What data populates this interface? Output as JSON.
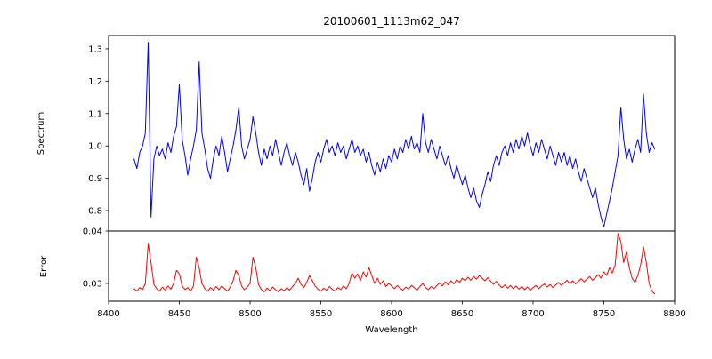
{
  "figure": {
    "title": "20100601_1113m62_047",
    "background": "#ffffff",
    "spine_color": "#000000"
  },
  "chart_data": [
    {
      "type": "line",
      "title": "20100601_1113m62_047",
      "series_name": "spectrum",
      "color": "#0000ff",
      "ylabel": "Spectrum",
      "xlim": [
        8400,
        8800
      ],
      "ylim": [
        0.737,
        1.341
      ],
      "grid": false,
      "legend": "none",
      "yticks": [
        {
          "v": 0.8,
          "label": "0.8"
        },
        {
          "v": 0.9,
          "label": "0.9"
        },
        {
          "v": 1.0,
          "label": "1.0"
        },
        {
          "v": 1.1,
          "label": "1.1"
        },
        {
          "v": 1.2,
          "label": "1.2"
        },
        {
          "v": 1.3,
          "label": "1.3"
        }
      ],
      "x_start": 8418,
      "x_step": 2,
      "values": [
        0.96,
        0.93,
        0.98,
        1.0,
        1.04,
        1.32,
        0.78,
        0.96,
        1.0,
        0.97,
        0.99,
        0.96,
        1.01,
        0.98,
        1.03,
        1.06,
        1.19,
        1.02,
        0.97,
        0.91,
        0.96,
        1.0,
        1.05,
        1.26,
        1.04,
        0.99,
        0.93,
        0.9,
        0.96,
        1.0,
        0.97,
        1.03,
        0.98,
        0.92,
        0.96,
        1.0,
        1.05,
        1.12,
        1.0,
        0.96,
        0.99,
        1.02,
        1.09,
        1.04,
        0.98,
        0.94,
        0.99,
        0.96,
        1.0,
        0.97,
        1.02,
        0.98,
        0.94,
        0.98,
        1.01,
        0.97,
        0.94,
        0.98,
        0.95,
        0.91,
        0.88,
        0.93,
        0.86,
        0.9,
        0.95,
        0.98,
        0.95,
        0.99,
        1.02,
        0.98,
        1.0,
        0.97,
        1.01,
        0.98,
        1.0,
        0.96,
        0.99,
        1.02,
        0.98,
        1.0,
        0.97,
        0.99,
        0.95,
        0.98,
        0.94,
        0.91,
        0.95,
        0.92,
        0.96,
        0.93,
        0.97,
        0.95,
        0.99,
        0.96,
        1.0,
        0.98,
        1.02,
        0.99,
        1.03,
        0.99,
        1.01,
        0.98,
        1.1,
        1.01,
        0.98,
        1.02,
        0.99,
        0.96,
        1.0,
        0.97,
        0.94,
        0.97,
        0.93,
        0.9,
        0.94,
        0.91,
        0.88,
        0.91,
        0.87,
        0.84,
        0.87,
        0.83,
        0.81,
        0.85,
        0.88,
        0.92,
        0.89,
        0.94,
        0.97,
        0.94,
        0.98,
        1.0,
        0.97,
        1.01,
        0.98,
        1.02,
        0.99,
        1.03,
        1.0,
        1.04,
        1.0,
        0.97,
        1.01,
        0.98,
        1.02,
        0.99,
        0.96,
        1.0,
        0.97,
        0.94,
        0.98,
        0.95,
        0.98,
        0.94,
        0.97,
        0.93,
        0.96,
        0.92,
        0.89,
        0.93,
        0.9,
        0.87,
        0.84,
        0.87,
        0.82,
        0.78,
        0.75,
        0.79,
        0.83,
        0.87,
        0.92,
        0.97,
        1.12,
        1.02,
        0.96,
        0.99,
        0.95,
        0.99,
        1.02,
        0.98,
        1.16,
        1.04,
        0.98,
        1.01,
        0.99
      ]
    },
    {
      "type": "line",
      "series_name": "error",
      "color": "#ff0000",
      "ylabel": "Error",
      "xlabel": "Wavelength",
      "xlim": [
        8400,
        8800
      ],
      "ylim": [
        0.0266,
        0.04
      ],
      "grid": false,
      "legend": "none",
      "yticks": [
        {
          "v": 0.03,
          "label": "0.03"
        },
        {
          "v": 0.04,
          "label": "0.04"
        }
      ],
      "xticks": [
        {
          "v": 8400,
          "label": "8400"
        },
        {
          "v": 8450,
          "label": "8450"
        },
        {
          "v": 8500,
          "label": "8500"
        },
        {
          "v": 8550,
          "label": "8550"
        },
        {
          "v": 8600,
          "label": "8600"
        },
        {
          "v": 8650,
          "label": "8650"
        },
        {
          "v": 8700,
          "label": "8700"
        },
        {
          "v": 8750,
          "label": "8750"
        },
        {
          "v": 8800,
          "label": "8800"
        }
      ],
      "x_start": 8418,
      "x_step": 2,
      "values": [
        0.029,
        0.0285,
        0.0292,
        0.0288,
        0.03,
        0.0375,
        0.034,
        0.0298,
        0.029,
        0.0285,
        0.0293,
        0.0287,
        0.0295,
        0.0289,
        0.03,
        0.0325,
        0.0318,
        0.0295,
        0.0288,
        0.0292,
        0.0285,
        0.0295,
        0.035,
        0.033,
        0.03,
        0.029,
        0.0285,
        0.0292,
        0.0287,
        0.0294,
        0.0288,
        0.0295,
        0.029,
        0.0285,
        0.0293,
        0.0305,
        0.0325,
        0.0315,
        0.0295,
        0.0288,
        0.0293,
        0.03,
        0.035,
        0.033,
        0.0298,
        0.0288,
        0.0284,
        0.0291,
        0.0286,
        0.0293,
        0.0288,
        0.0284,
        0.029,
        0.0286,
        0.0292,
        0.0287,
        0.0294,
        0.03,
        0.031,
        0.0298,
        0.0292,
        0.0302,
        0.0315,
        0.0305,
        0.0295,
        0.0289,
        0.0285,
        0.0291,
        0.0287,
        0.0294,
        0.0289,
        0.0285,
        0.0292,
        0.0288,
        0.0295,
        0.029,
        0.03,
        0.032,
        0.031,
        0.0318,
        0.0305,
        0.0322,
        0.0312,
        0.033,
        0.0315,
        0.03,
        0.031,
        0.0298,
        0.0305,
        0.0294,
        0.03,
        0.0295,
        0.029,
        0.0296,
        0.0291,
        0.0287,
        0.0293,
        0.0289,
        0.0296,
        0.0292,
        0.0287,
        0.0294,
        0.03,
        0.0292,
        0.0288,
        0.0294,
        0.029,
        0.0296,
        0.0301,
        0.0295,
        0.0303,
        0.0297,
        0.0305,
        0.0299,
        0.0307,
        0.0302,
        0.031,
        0.0305,
        0.0312,
        0.0306,
        0.0313,
        0.0308,
        0.0315,
        0.031,
        0.0305,
        0.0311,
        0.0304,
        0.0298,
        0.0304,
        0.0297,
        0.0292,
        0.0297,
        0.0291,
        0.0296,
        0.029,
        0.0295,
        0.0289,
        0.0294,
        0.0288,
        0.0293,
        0.0287,
        0.0292,
        0.0296,
        0.029,
        0.0295,
        0.0299,
        0.0293,
        0.0298,
        0.0292,
        0.0297,
        0.0302,
        0.0296,
        0.0301,
        0.0306,
        0.0299,
        0.0305,
        0.0299,
        0.0304,
        0.0309,
        0.0303,
        0.0308,
        0.0313,
        0.0306,
        0.0311,
        0.0317,
        0.031,
        0.0322,
        0.0315,
        0.033,
        0.032,
        0.0335,
        0.0395,
        0.038,
        0.034,
        0.036,
        0.033,
        0.031,
        0.0302,
        0.0315,
        0.0335,
        0.037,
        0.034,
        0.03,
        0.0285,
        0.028
      ]
    }
  ]
}
